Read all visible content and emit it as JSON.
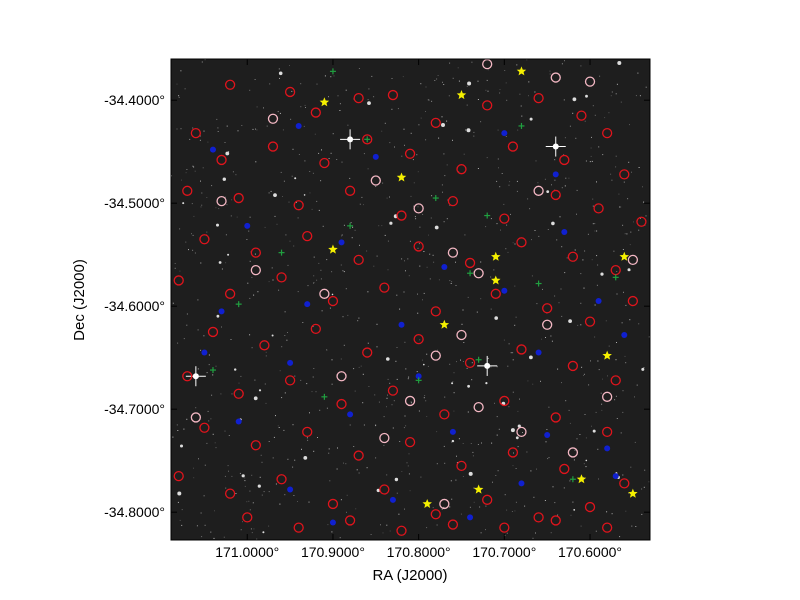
{
  "chart_data": {
    "type": "scatter",
    "title": "",
    "xlabel": "RA (J2000)",
    "ylabel": "Dec (J2000)",
    "xlim": [
      171.089,
      170.53
    ],
    "ylim": [
      -34.827,
      -34.36
    ],
    "x_ticks": [
      171.0,
      170.9,
      170.8,
      170.7,
      170.6
    ],
    "x_tick_labels": [
      "171.0000°",
      "170.9000°",
      "170.8000°",
      "170.7000°",
      "170.6000°"
    ],
    "y_ticks": [
      -34.4,
      -34.5,
      -34.6,
      -34.7,
      -34.8
    ],
    "y_tick_labels": [
      "-34.4000°",
      "-34.5000°",
      "-34.6000°",
      "-34.7000°",
      "-34.8000°"
    ],
    "background": "grayscale sky image",
    "grid": false,
    "legend": "none",
    "colors": {
      "plot_bg": "#1e1e1e",
      "red_circle": "#e0141c",
      "pink_circle": "#f4b8c4",
      "blue_dot": "#1020d0",
      "green_cross": "#20a040",
      "yellow_star": "#f5f000",
      "white_circle": "#ffffff"
    },
    "series": [
      {
        "marker": "red circle",
        "points": [
          [
            170.87,
            -34.398
          ],
          [
            171.02,
            -34.385
          ],
          [
            170.95,
            -34.392
          ],
          [
            170.92,
            -34.412
          ],
          [
            170.83,
            -34.395
          ],
          [
            170.78,
            -34.422
          ],
          [
            170.72,
            -34.405
          ],
          [
            170.66,
            -34.398
          ],
          [
            170.61,
            -34.415
          ],
          [
            170.58,
            -34.432
          ],
          [
            171.06,
            -34.432
          ],
          [
            171.03,
            -34.458
          ],
          [
            170.97,
            -34.445
          ],
          [
            170.91,
            -34.461
          ],
          [
            170.86,
            -34.438
          ],
          [
            170.81,
            -34.452
          ],
          [
            170.75,
            -34.467
          ],
          [
            170.69,
            -34.445
          ],
          [
            170.63,
            -34.458
          ],
          [
            170.56,
            -34.472
          ],
          [
            171.07,
            -34.488
          ],
          [
            171.01,
            -34.495
          ],
          [
            170.94,
            -34.502
          ],
          [
            170.88,
            -34.488
          ],
          [
            170.82,
            -34.512
          ],
          [
            170.76,
            -34.498
          ],
          [
            170.7,
            -34.515
          ],
          [
            170.64,
            -34.492
          ],
          [
            170.59,
            -34.505
          ],
          [
            170.54,
            -34.518
          ],
          [
            171.05,
            -34.535
          ],
          [
            170.99,
            -34.548
          ],
          [
            170.93,
            -34.532
          ],
          [
            170.87,
            -34.555
          ],
          [
            170.8,
            -34.542
          ],
          [
            170.74,
            -34.558
          ],
          [
            170.68,
            -34.538
          ],
          [
            170.62,
            -34.552
          ],
          [
            170.57,
            -34.565
          ],
          [
            171.08,
            -34.575
          ],
          [
            171.02,
            -34.588
          ],
          [
            170.96,
            -34.572
          ],
          [
            170.9,
            -34.595
          ],
          [
            170.84,
            -34.582
          ],
          [
            170.78,
            -34.605
          ],
          [
            170.71,
            -34.588
          ],
          [
            170.65,
            -34.602
          ],
          [
            170.6,
            -34.615
          ],
          [
            170.55,
            -34.595
          ],
          [
            171.04,
            -34.625
          ],
          [
            170.98,
            -34.638
          ],
          [
            170.92,
            -34.622
          ],
          [
            170.86,
            -34.645
          ],
          [
            170.8,
            -34.632
          ],
          [
            170.74,
            -34.655
          ],
          [
            170.68,
            -34.642
          ],
          [
            170.62,
            -34.658
          ],
          [
            170.57,
            -34.672
          ],
          [
            171.07,
            -34.668
          ],
          [
            171.01,
            -34.685
          ],
          [
            170.95,
            -34.672
          ],
          [
            170.89,
            -34.695
          ],
          [
            170.83,
            -34.682
          ],
          [
            170.77,
            -34.705
          ],
          [
            170.7,
            -34.692
          ],
          [
            170.64,
            -34.708
          ],
          [
            170.58,
            -34.722
          ],
          [
            171.05,
            -34.718
          ],
          [
            170.99,
            -34.735
          ],
          [
            170.93,
            -34.722
          ],
          [
            170.87,
            -34.745
          ],
          [
            170.81,
            -34.732
          ],
          [
            170.75,
            -34.755
          ],
          [
            170.69,
            -34.742
          ],
          [
            170.63,
            -34.758
          ],
          [
            170.56,
            -34.772
          ],
          [
            171.08,
            -34.765
          ],
          [
            171.02,
            -34.782
          ],
          [
            170.96,
            -34.768
          ],
          [
            170.9,
            -34.792
          ],
          [
            170.84,
            -34.778
          ],
          [
            170.78,
            -34.802
          ],
          [
            170.72,
            -34.788
          ],
          [
            170.66,
            -34.805
          ],
          [
            170.6,
            -34.795
          ],
          [
            171.0,
            -34.805
          ],
          [
            170.94,
            -34.815
          ],
          [
            170.88,
            -34.808
          ],
          [
            170.82,
            -34.818
          ],
          [
            170.76,
            -34.812
          ],
          [
            170.7,
            -34.815
          ],
          [
            170.64,
            -34.808
          ],
          [
            170.58,
            -34.815
          ]
        ]
      },
      {
        "marker": "pink circle",
        "points": [
          [
            170.72,
            -34.365
          ],
          [
            170.64,
            -34.378
          ],
          [
            170.6,
            -34.382
          ],
          [
            170.76,
            -34.548
          ],
          [
            170.73,
            -34.568
          ],
          [
            170.8,
            -34.505
          ],
          [
            170.66,
            -34.488
          ],
          [
            170.78,
            -34.648
          ],
          [
            170.81,
            -34.692
          ],
          [
            170.73,
            -34.698
          ],
          [
            170.65,
            -34.618
          ],
          [
            170.89,
            -34.668
          ],
          [
            170.84,
            -34.728
          ],
          [
            171.06,
            -34.708
          ],
          [
            170.99,
            -34.565
          ],
          [
            170.91,
            -34.588
          ],
          [
            170.55,
            -34.555
          ],
          [
            170.77,
            -34.792
          ],
          [
            170.68,
            -34.722
          ],
          [
            170.62,
            -34.742
          ],
          [
            170.58,
            -34.688
          ],
          [
            170.97,
            -34.418
          ],
          [
            170.85,
            -34.478
          ],
          [
            170.75,
            -34.628
          ],
          [
            171.03,
            -34.498
          ]
        ]
      },
      {
        "marker": "blue dot",
        "points": [
          [
            171.04,
            -34.448
          ],
          [
            170.94,
            -34.425
          ],
          [
            170.85,
            -34.455
          ],
          [
            170.7,
            -34.432
          ],
          [
            170.64,
            -34.472
          ],
          [
            171.0,
            -34.522
          ],
          [
            170.89,
            -34.538
          ],
          [
            170.77,
            -34.562
          ],
          [
            170.63,
            -34.528
          ],
          [
            171.03,
            -34.605
          ],
          [
            170.93,
            -34.598
          ],
          [
            170.82,
            -34.618
          ],
          [
            170.7,
            -34.585
          ],
          [
            170.59,
            -34.595
          ],
          [
            171.05,
            -34.645
          ],
          [
            170.95,
            -34.655
          ],
          [
            170.8,
            -34.668
          ],
          [
            170.66,
            -34.645
          ],
          [
            170.56,
            -34.628
          ],
          [
            171.01,
            -34.712
          ],
          [
            170.88,
            -34.705
          ],
          [
            170.76,
            -34.722
          ],
          [
            170.65,
            -34.725
          ],
          [
            170.58,
            -34.738
          ],
          [
            170.95,
            -34.778
          ],
          [
            170.83,
            -34.788
          ],
          [
            170.68,
            -34.772
          ],
          [
            170.57,
            -34.765
          ],
          [
            170.9,
            -34.81
          ],
          [
            170.74,
            -34.805
          ]
        ]
      },
      {
        "marker": "green cross",
        "points": [
          [
            170.9,
            -34.372
          ],
          [
            170.86,
            -34.438
          ],
          [
            170.68,
            -34.425
          ],
          [
            170.78,
            -34.495
          ],
          [
            170.72,
            -34.512
          ],
          [
            170.96,
            -34.548
          ],
          [
            170.88,
            -34.522
          ],
          [
            170.74,
            -34.568
          ],
          [
            171.01,
            -34.598
          ],
          [
            170.8,
            -34.672
          ],
          [
            170.66,
            -34.578
          ],
          [
            170.57,
            -34.572
          ],
          [
            171.04,
            -34.662
          ],
          [
            170.91,
            -34.688
          ],
          [
            170.73,
            -34.652
          ],
          [
            170.62,
            -34.768
          ]
        ]
      },
      {
        "marker": "yellow star",
        "points": [
          [
            170.68,
            -34.372
          ],
          [
            170.75,
            -34.395
          ],
          [
            170.91,
            -34.402
          ],
          [
            170.82,
            -34.475
          ],
          [
            170.9,
            -34.545
          ],
          [
            170.71,
            -34.552
          ],
          [
            170.56,
            -34.552
          ],
          [
            170.71,
            -34.575
          ],
          [
            170.77,
            -34.618
          ],
          [
            170.58,
            -34.648
          ],
          [
            170.61,
            -34.768
          ],
          [
            170.73,
            -34.778
          ],
          [
            170.79,
            -34.792
          ],
          [
            170.55,
            -34.782
          ]
        ]
      }
    ]
  }
}
